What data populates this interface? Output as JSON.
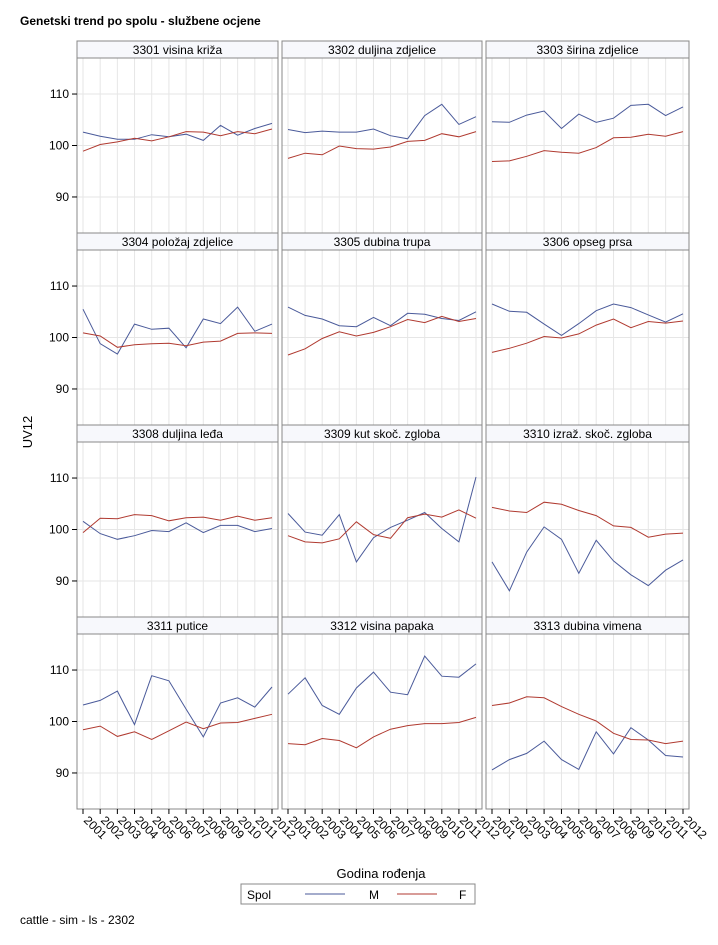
{
  "title": "Genetski trend po spolu - službene ocjene",
  "footer": "cattle - sim - ls - 2302",
  "colors": {
    "M": "#4a5a9a",
    "F": "#b03a30",
    "grid": "#e6e6e6",
    "frame": "#888888",
    "header_bg": "#f7f8fc"
  },
  "chart_data": {
    "type": "line",
    "ylabel": "UV12",
    "xlabel": "Godina rođenja",
    "ylim": [
      83,
      117
    ],
    "yticks": [
      90,
      100,
      110
    ],
    "x": [
      2001,
      2002,
      2003,
      2004,
      2005,
      2006,
      2007,
      2008,
      2009,
      2010,
      2011,
      2012
    ],
    "grid": true,
    "legend": {
      "title": "Spol",
      "position": "bottom",
      "entries": [
        "M",
        "F"
      ]
    },
    "panels": [
      {
        "name": "3301 visina križa",
        "M": [
          102.6,
          101.8,
          101.2,
          101.2,
          102.1,
          101.7,
          102.2,
          101.0,
          103.9,
          102.0,
          103.3,
          104.3
        ],
        "F": [
          98.9,
          100.2,
          100.7,
          101.4,
          100.9,
          101.7,
          102.7,
          102.6,
          101.9,
          102.7,
          102.3,
          103.2
        ]
      },
      {
        "name": "3302 duljina zdjelice",
        "M": [
          103.1,
          102.5,
          102.8,
          102.6,
          102.6,
          103.2,
          101.9,
          101.3,
          105.8,
          108.0,
          104.1,
          105.6
        ],
        "F": [
          97.5,
          98.5,
          98.2,
          99.9,
          99.4,
          99.3,
          99.7,
          100.8,
          101.0,
          102.3,
          101.7,
          102.7
        ]
      },
      {
        "name": "3303 širina zdjelice",
        "M": [
          104.6,
          104.5,
          105.9,
          106.7,
          103.3,
          106.1,
          104.5,
          105.3,
          107.8,
          108.0,
          105.8,
          107.5
        ],
        "F": [
          96.9,
          97.0,
          97.9,
          99.0,
          98.7,
          98.5,
          99.6,
          101.5,
          101.6,
          102.2,
          101.8,
          102.7
        ]
      },
      {
        "name": "3304 položaj zdjelice",
        "M": [
          105.5,
          98.8,
          96.8,
          102.6,
          101.6,
          101.8,
          98.0,
          103.6,
          102.7,
          105.9,
          101.2,
          102.6
        ],
        "F": [
          100.9,
          100.3,
          98.1,
          98.6,
          98.8,
          98.9,
          98.4,
          99.1,
          99.3,
          100.8,
          100.9,
          100.8
        ]
      },
      {
        "name": "3305 dubina trupa",
        "M": [
          105.9,
          104.3,
          103.6,
          102.3,
          102.1,
          103.9,
          102.3,
          104.7,
          104.5,
          103.7,
          103.3,
          105.0
        ],
        "F": [
          96.6,
          97.8,
          99.8,
          101.1,
          100.3,
          101.0,
          102.1,
          103.5,
          102.9,
          104.1,
          103.1,
          103.7
        ]
      },
      {
        "name": "3306 opseg prsa",
        "M": [
          106.5,
          105.1,
          104.9,
          102.6,
          100.4,
          102.7,
          105.2,
          106.5,
          105.8,
          104.4,
          103.0,
          104.6
        ],
        "F": [
          97.1,
          97.9,
          98.9,
          100.2,
          99.9,
          100.7,
          102.4,
          103.6,
          101.9,
          103.1,
          102.8,
          103.2
        ]
      },
      {
        "name": "3308 duljina leđa",
        "M": [
          101.6,
          99.2,
          98.1,
          98.8,
          99.8,
          99.6,
          101.3,
          99.4,
          100.8,
          100.8,
          99.6,
          100.2
        ],
        "F": [
          99.4,
          102.2,
          102.1,
          102.9,
          102.7,
          101.7,
          102.3,
          102.4,
          101.8,
          102.6,
          101.8,
          102.3
        ]
      },
      {
        "name": "3309 kut skoč. zgloba",
        "M": [
          103.1,
          99.5,
          98.9,
          102.9,
          93.7,
          98.4,
          100.4,
          101.8,
          103.3,
          100.2,
          97.6,
          110.2
        ],
        "F": [
          98.8,
          97.6,
          97.4,
          98.2,
          101.5,
          99.0,
          98.3,
          102.3,
          103.0,
          102.4,
          103.8,
          102.2
        ]
      },
      {
        "name": "3310 izraž. skoč. zgloba",
        "M": [
          93.7,
          88.1,
          95.6,
          100.5,
          98.1,
          91.5,
          97.9,
          93.9,
          91.2,
          89.1,
          92.1,
          94.1
        ],
        "F": [
          104.3,
          103.6,
          103.3,
          105.3,
          104.9,
          103.7,
          102.7,
          100.7,
          100.4,
          98.5,
          99.1,
          99.3
        ]
      },
      {
        "name": "3311 putice",
        "M": [
          103.2,
          104.1,
          105.9,
          99.4,
          108.9,
          107.9,
          102.4,
          97.0,
          103.6,
          104.6,
          102.8,
          106.7
        ],
        "F": [
          98.4,
          99.1,
          97.1,
          98.0,
          96.5,
          98.2,
          99.9,
          98.6,
          99.7,
          99.8,
          100.6,
          101.4
        ]
      },
      {
        "name": "3312 visina papaka",
        "M": [
          105.3,
          108.5,
          103.1,
          101.4,
          106.5,
          109.6,
          105.7,
          105.2,
          112.7,
          108.8,
          108.6,
          111.2
        ],
        "F": [
          95.7,
          95.5,
          96.7,
          96.3,
          94.9,
          97.0,
          98.5,
          99.2,
          99.6,
          99.6,
          99.8,
          100.8
        ]
      },
      {
        "name": "3313 dubina vimena",
        "M": [
          90.6,
          92.6,
          93.8,
          96.2,
          92.6,
          90.7,
          98.0,
          93.7,
          98.8,
          96.4,
          93.4,
          93.1
        ],
        "F": [
          103.1,
          103.6,
          104.8,
          104.6,
          102.9,
          101.4,
          100.1,
          97.7,
          96.5,
          96.4,
          95.7,
          96.2
        ]
      }
    ]
  }
}
